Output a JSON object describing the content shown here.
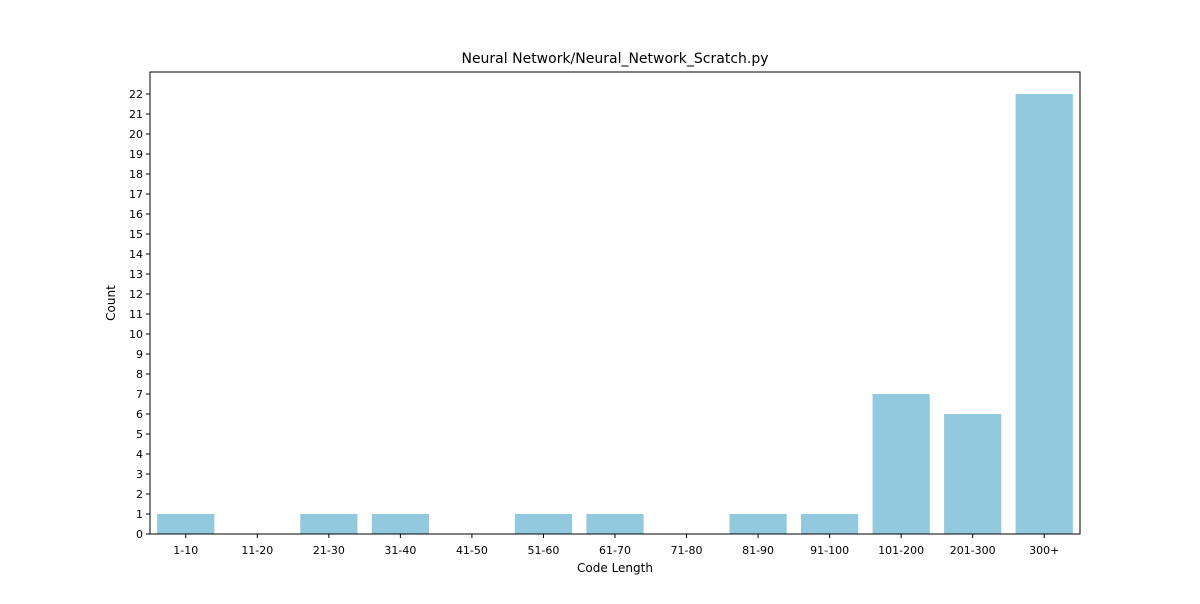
{
  "chart_data": {
    "type": "bar",
    "title": "Neural Network/Neural_Network_Scratch.py",
    "xlabel": "Code Length",
    "ylabel": "Count",
    "categories": [
      "1-10",
      "11-20",
      "21-30",
      "31-40",
      "41-50",
      "51-60",
      "61-70",
      "71-80",
      "81-90",
      "91-100",
      "101-200",
      "201-300",
      "300+"
    ],
    "values": [
      1,
      0,
      1,
      1,
      0,
      1,
      1,
      0,
      1,
      1,
      7,
      6,
      22
    ],
    "ylim": [
      0,
      23.1
    ],
    "yticks": [
      0,
      1,
      2,
      3,
      4,
      5,
      6,
      7,
      8,
      9,
      10,
      11,
      12,
      13,
      14,
      15,
      16,
      17,
      18,
      19,
      20,
      21,
      22
    ],
    "bar_color": "#92c9df",
    "grid": false,
    "legend": "none"
  }
}
